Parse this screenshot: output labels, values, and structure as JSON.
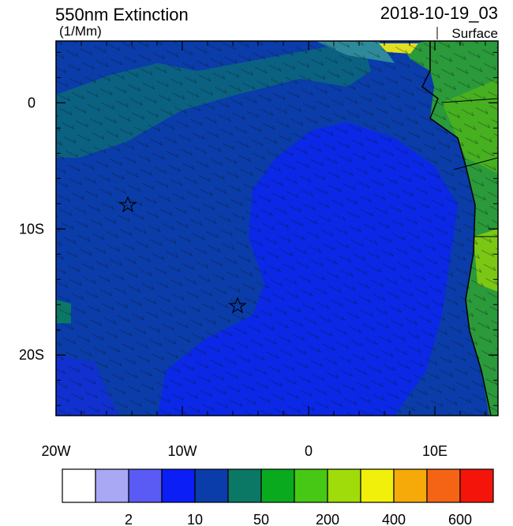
{
  "chart_data": {
    "type": "map",
    "title": "550nm Extinction",
    "units": "(1/Mm)",
    "date": "2018-10-19_03",
    "level": "Surface",
    "xlim": [
      -20,
      15
    ],
    "ylim": [
      -24.8,
      4.9
    ],
    "xticks": [
      {
        "value": -20,
        "label": "20W"
      },
      {
        "value": -10,
        "label": "10W"
      },
      0,
      {
        "value": 10,
        "label": "10E"
      }
    ],
    "yticks": [
      0,
      {
        "value": -10,
        "label": "10S"
      },
      {
        "value": -20,
        "label": "20S"
      }
    ],
    "colorbar": {
      "colors": [
        "#ffffff",
        "#a8a8f5",
        "#5a5af5",
        "#0a1ef5",
        "#0a3caa",
        "#0a7864",
        "#0aaa1e",
        "#46c814",
        "#a0dc0a",
        "#f0f00a",
        "#f5aa0a",
        "#f56414",
        "#f5140a"
      ],
      "levels": [
        null,
        2,
        null,
        10,
        null,
        50,
        null,
        200,
        null,
        400,
        null,
        600
      ]
    }
  }
}
